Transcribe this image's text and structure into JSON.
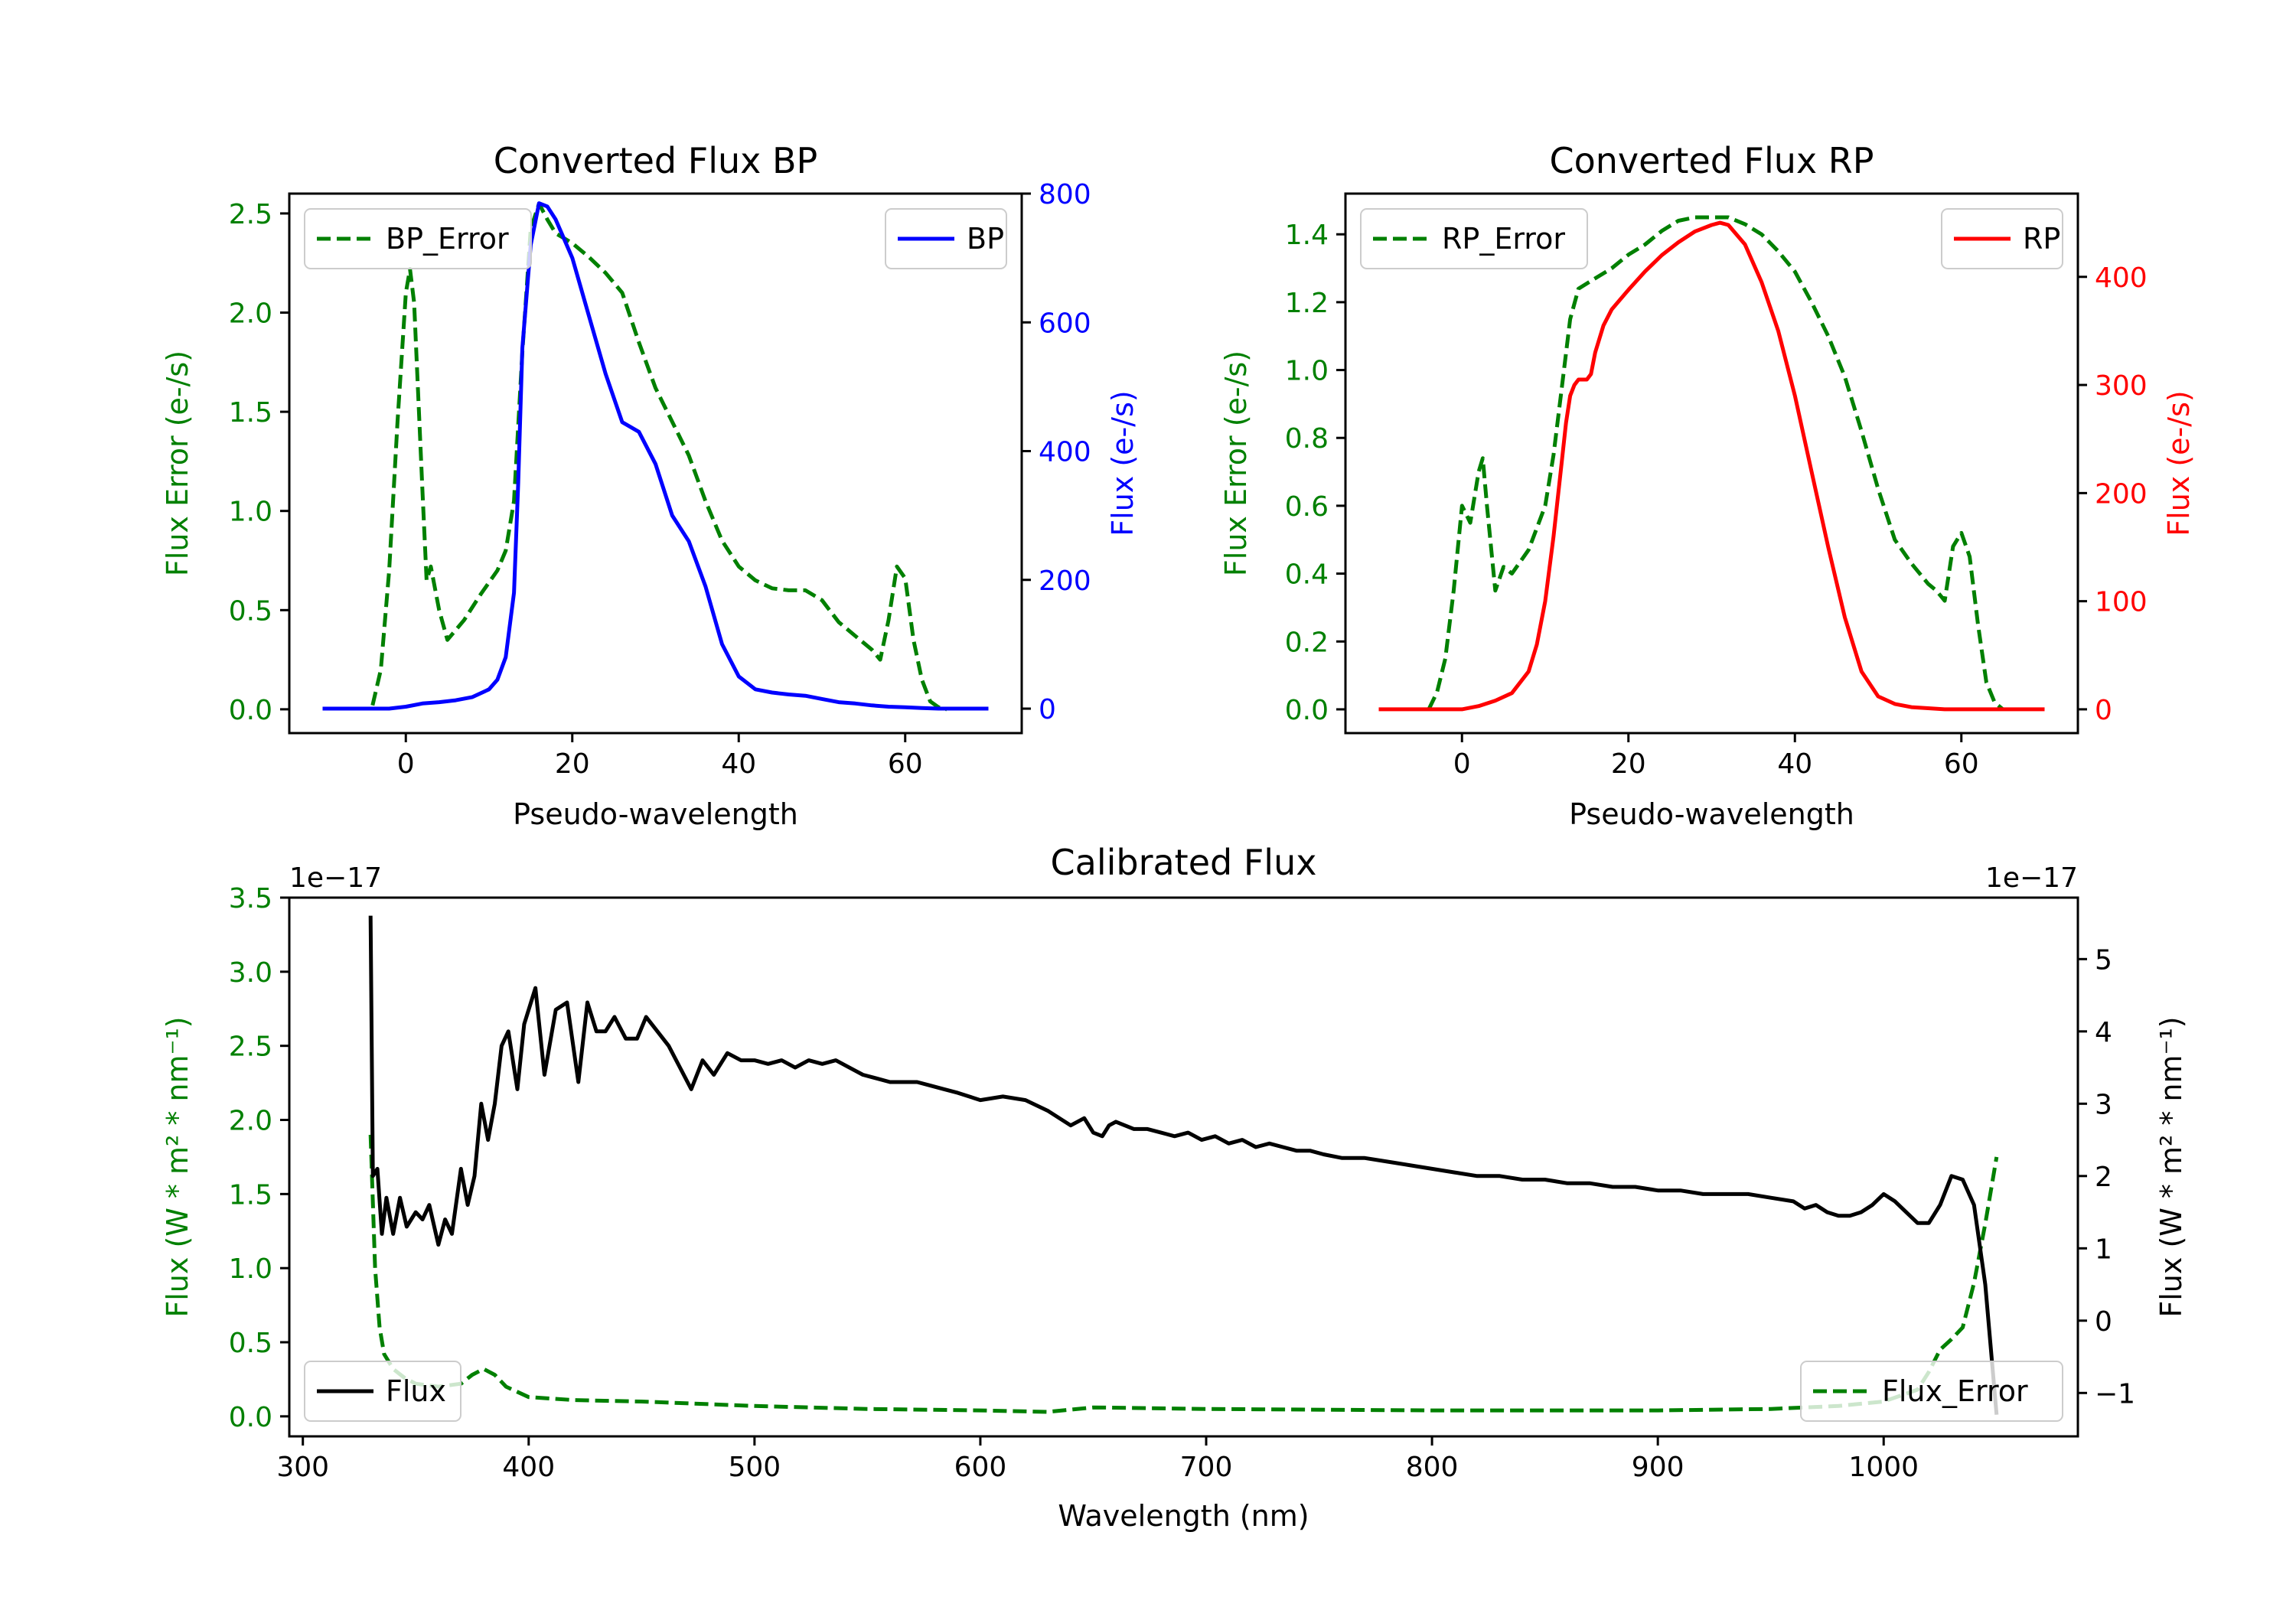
{
  "colors": {
    "error": "#008000",
    "bp": "#0000ff",
    "rp": "#ff0000",
    "flux": "#000000"
  },
  "chart_data": [
    {
      "type": "line",
      "title": "Converted Flux BP",
      "xlabel": "Pseudo-wavelength",
      "ylabel_left": "Flux Error (e-/s)",
      "ylabel_right": "Flux (e-/s)",
      "xlim": [
        -14,
        74
      ],
      "ylim_left": [
        -0.12,
        2.6
      ],
      "ylim_right": [
        -38,
        800
      ],
      "xticks": [
        0,
        20,
        40,
        60
      ],
      "xtick_labels": [
        "0",
        "20",
        "40",
        "60"
      ],
      "yticks_left": [
        0.0,
        0.5,
        1.0,
        1.5,
        2.0,
        2.5
      ],
      "ytick_labels_left": [
        "0.0",
        "0.5",
        "1.0",
        "1.5",
        "2.0",
        "2.5"
      ],
      "yticks_right": [
        0,
        200,
        400,
        600,
        800
      ],
      "ytick_labels_right": [
        "0",
        "200",
        "400",
        "600",
        "800"
      ],
      "series": [
        {
          "name": "BP_Error",
          "axis": "left",
          "style": "dashed",
          "color": "#008000",
          "x": [
            -4,
            -3,
            -2,
            -1,
            0,
            0.5,
            1,
            2,
            2.5,
            3,
            4,
            5,
            7,
            9,
            11,
            12,
            13,
            14,
            15,
            16,
            17,
            18,
            20,
            22,
            24,
            26,
            28,
            30,
            32,
            34,
            36,
            38,
            40,
            42,
            44,
            46,
            48,
            50,
            52,
            54,
            56,
            57,
            58,
            59,
            60,
            61,
            62,
            63,
            64,
            65
          ],
          "values": [
            0.02,
            0.2,
            0.7,
            1.45,
            2.1,
            2.22,
            2.05,
            1.1,
            0.65,
            0.72,
            0.5,
            0.35,
            0.45,
            0.58,
            0.7,
            0.8,
            1.05,
            1.8,
            2.42,
            2.55,
            2.47,
            2.4,
            2.35,
            2.28,
            2.2,
            2.1,
            1.85,
            1.62,
            1.45,
            1.28,
            1.05,
            0.85,
            0.72,
            0.65,
            0.61,
            0.6,
            0.6,
            0.55,
            0.44,
            0.37,
            0.3,
            0.25,
            0.45,
            0.72,
            0.66,
            0.35,
            0.15,
            0.04,
            0.01,
            0.0
          ]
        },
        {
          "name": "BP",
          "axis": "right",
          "style": "solid",
          "color": "#0000ff",
          "x": [
            -10,
            -6,
            -2,
            0,
            2,
            4,
            6,
            8,
            10,
            11,
            12,
            13,
            13.5,
            14,
            15,
            16,
            17,
            18,
            19,
            20,
            22,
            24,
            26,
            28,
            30,
            32,
            34,
            36,
            38,
            40,
            42,
            44,
            46,
            48,
            50,
            52,
            54,
            56,
            58,
            60,
            62,
            64,
            66,
            68,
            70
          ],
          "values": [
            0,
            0,
            0,
            3,
            8,
            10,
            13,
            18,
            30,
            45,
            80,
            180,
            350,
            560,
            720,
            785,
            780,
            760,
            730,
            700,
            610,
            520,
            445,
            430,
            380,
            300,
            260,
            190,
            100,
            50,
            30,
            25,
            22,
            20,
            15,
            10,
            8,
            5,
            3,
            2,
            1,
            0,
            0,
            0,
            0
          ]
        }
      ],
      "legend": [
        {
          "label": "BP_Error",
          "position": "upper-left"
        },
        {
          "label": "BP",
          "position": "upper-right"
        }
      ]
    },
    {
      "type": "line",
      "title": "Converted Flux RP",
      "xlabel": "Pseudo-wavelength",
      "ylabel_left": "Flux Error (e-/s)",
      "ylabel_right": "Flux (e-/s)",
      "xlim": [
        -14,
        74
      ],
      "ylim_left": [
        -0.07,
        1.52
      ],
      "ylim_right": [
        -22,
        477
      ],
      "xticks": [
        0,
        20,
        40,
        60
      ],
      "xtick_labels": [
        "0",
        "20",
        "40",
        "60"
      ],
      "yticks_left": [
        0.0,
        0.2,
        0.4,
        0.6,
        0.8,
        1.0,
        1.2,
        1.4
      ],
      "ytick_labels_left": [
        "0.0",
        "0.2",
        "0.4",
        "0.6",
        "0.8",
        "1.0",
        "1.2",
        "1.4"
      ],
      "yticks_right": [
        0,
        100,
        200,
        300,
        400
      ],
      "ytick_labels_right": [
        "0",
        "100",
        "200",
        "300",
        "400"
      ],
      "series": [
        {
          "name": "RP_Error",
          "axis": "left",
          "style": "dashed",
          "color": "#008000",
          "x": [
            -4,
            -3,
            -2,
            -1,
            0,
            1,
            2,
            2.5,
            3,
            4,
            5,
            6,
            8,
            10,
            11,
            12,
            13,
            14,
            16,
            18,
            20,
            22,
            24,
            26,
            28,
            30,
            32,
            34,
            36,
            38,
            40,
            42,
            44,
            46,
            48,
            50,
            52,
            54,
            55,
            56,
            57,
            58,
            59,
            60,
            61,
            62,
            63,
            64,
            65
          ],
          "values": [
            0.0,
            0.05,
            0.15,
            0.35,
            0.6,
            0.55,
            0.7,
            0.74,
            0.6,
            0.35,
            0.42,
            0.4,
            0.47,
            0.6,
            0.75,
            0.95,
            1.15,
            1.24,
            1.27,
            1.3,
            1.34,
            1.37,
            1.41,
            1.44,
            1.45,
            1.45,
            1.45,
            1.43,
            1.4,
            1.35,
            1.29,
            1.2,
            1.1,
            0.98,
            0.82,
            0.65,
            0.5,
            0.43,
            0.4,
            0.37,
            0.35,
            0.32,
            0.48,
            0.52,
            0.45,
            0.25,
            0.08,
            0.02,
            0.0
          ]
        },
        {
          "name": "RP",
          "axis": "right",
          "style": "solid",
          "color": "#ff0000",
          "x": [
            -10,
            -5,
            0,
            2,
            4,
            6,
            8,
            9,
            10,
            11,
            12,
            12.5,
            13,
            13.5,
            14,
            15,
            15.5,
            16,
            17,
            18,
            20,
            22,
            24,
            26,
            28,
            30,
            31,
            32,
            34,
            36,
            38,
            40,
            42,
            44,
            46,
            48,
            50,
            52,
            54,
            56,
            58,
            60,
            62,
            64,
            66,
            68,
            70
          ],
          "values": [
            0,
            0,
            0,
            3,
            8,
            15,
            35,
            60,
            100,
            160,
            230,
            265,
            290,
            300,
            305,
            305,
            310,
            330,
            355,
            370,
            388,
            405,
            420,
            432,
            442,
            448,
            450,
            448,
            430,
            395,
            350,
            290,
            220,
            150,
            85,
            35,
            12,
            5,
            2,
            1,
            0,
            0,
            0,
            0,
            0,
            0,
            0
          ]
        }
      ],
      "legend": [
        {
          "label": "RP_Error",
          "position": "upper-left"
        },
        {
          "label": "RP",
          "position": "upper-right"
        }
      ]
    },
    {
      "type": "line",
      "title": "Calibrated Flux",
      "xlabel": "Wavelength (nm)",
      "ylabel_left": "Flux (W * m² * nm⁻¹)",
      "ylabel_right": "Flux (W * m² * nm⁻¹)",
      "offset_left": "1e−17",
      "offset_right": "1e−17",
      "xlim": [
        294,
        1086
      ],
      "ylim_left": [
        -0.135,
        3.5
      ],
      "ylim_right": [
        -1.6,
        5.85
      ],
      "xticks": [
        300,
        400,
        500,
        600,
        700,
        800,
        900,
        1000
      ],
      "xtick_labels": [
        "300",
        "400",
        "500",
        "600",
        "700",
        "800",
        "900",
        "1000"
      ],
      "yticks_left": [
        0.0,
        0.5,
        1.0,
        1.5,
        2.0,
        2.5,
        3.0,
        3.5
      ],
      "ytick_labels_left": [
        "0.0",
        "0.5",
        "1.0",
        "1.5",
        "2.0",
        "2.5",
        "3.0",
        "3.5"
      ],
      "yticks_right": [
        -1,
        0,
        1,
        2,
        3,
        4,
        5
      ],
      "ytick_labels_right": [
        "−1",
        "0",
        "1",
        "2",
        "3",
        "4",
        "5"
      ],
      "series": [
        {
          "name": "Flux_Error",
          "axis": "left",
          "style": "dashed",
          "color": "#008000",
          "x": [
            330,
            332,
            334,
            336,
            340,
            345,
            350,
            360,
            370,
            375,
            380,
            385,
            390,
            400,
            420,
            450,
            500,
            550,
            600,
            630,
            650,
            700,
            800,
            900,
            950,
            980,
            1000,
            1015,
            1020,
            1025,
            1030,
            1035,
            1040,
            1045,
            1050
          ],
          "values": [
            1.9,
            1.0,
            0.6,
            0.42,
            0.32,
            0.26,
            0.22,
            0.2,
            0.22,
            0.28,
            0.32,
            0.28,
            0.2,
            0.13,
            0.11,
            0.1,
            0.07,
            0.05,
            0.04,
            0.03,
            0.06,
            0.05,
            0.04,
            0.04,
            0.05,
            0.07,
            0.1,
            0.18,
            0.3,
            0.45,
            0.52,
            0.6,
            0.9,
            1.3,
            1.75
          ]
        },
        {
          "name": "Flux",
          "axis": "right",
          "style": "solid",
          "color": "#000000",
          "x": [
            330,
            331,
            333,
            335,
            337,
            340,
            343,
            346,
            350,
            353,
            356,
            360,
            363,
            366,
            370,
            373,
            376,
            379,
            382,
            385,
            388,
            391,
            395,
            398,
            403,
            407,
            412,
            417,
            422,
            426,
            430,
            434,
            438,
            443,
            448,
            452,
            457,
            462,
            467,
            472,
            477,
            482,
            488,
            494,
            500,
            506,
            512,
            518,
            524,
            530,
            536,
            542,
            548,
            554,
            560,
            566,
            572,
            578,
            584,
            590,
            600,
            610,
            620,
            630,
            640,
            646,
            650,
            654,
            657,
            660,
            664,
            668,
            674,
            680,
            686,
            692,
            698,
            704,
            710,
            716,
            722,
            728,
            734,
            740,
            746,
            752,
            760,
            770,
            780,
            790,
            800,
            810,
            820,
            830,
            840,
            850,
            860,
            870,
            880,
            890,
            900,
            910,
            920,
            930,
            940,
            950,
            960,
            965,
            970,
            975,
            980,
            985,
            990,
            995,
            1000,
            1005,
            1010,
            1015,
            1020,
            1025,
            1030,
            1035,
            1040,
            1045,
            1050
          ],
          "values": [
            5.6,
            2.0,
            2.1,
            1.2,
            1.7,
            1.2,
            1.7,
            1.3,
            1.5,
            1.4,
            1.6,
            1.05,
            1.4,
            1.2,
            2.1,
            1.6,
            2.0,
            3.0,
            2.5,
            3.0,
            3.8,
            4.0,
            3.2,
            4.1,
            4.6,
            3.4,
            4.3,
            4.4,
            3.3,
            4.4,
            4.0,
            4.0,
            4.2,
            3.9,
            3.9,
            4.2,
            4.0,
            3.8,
            3.5,
            3.2,
            3.6,
            3.4,
            3.7,
            3.6,
            3.6,
            3.55,
            3.6,
            3.5,
            3.6,
            3.55,
            3.6,
            3.5,
            3.4,
            3.35,
            3.3,
            3.3,
            3.3,
            3.25,
            3.2,
            3.15,
            3.05,
            3.1,
            3.05,
            2.9,
            2.7,
            2.8,
            2.6,
            2.55,
            2.7,
            2.75,
            2.7,
            2.65,
            2.65,
            2.6,
            2.55,
            2.6,
            2.5,
            2.55,
            2.45,
            2.5,
            2.4,
            2.45,
            2.4,
            2.35,
            2.35,
            2.3,
            2.25,
            2.25,
            2.2,
            2.15,
            2.1,
            2.05,
            2.0,
            2.0,
            1.95,
            1.95,
            1.9,
            1.9,
            1.85,
            1.85,
            1.8,
            1.8,
            1.75,
            1.75,
            1.75,
            1.7,
            1.65,
            1.55,
            1.6,
            1.5,
            1.45,
            1.45,
            1.5,
            1.6,
            1.75,
            1.65,
            1.5,
            1.35,
            1.35,
            1.6,
            2.0,
            1.95,
            1.6,
            0.5,
            -1.3
          ]
        }
      ],
      "legend": [
        {
          "label": "Flux",
          "position": "lower-left"
        },
        {
          "label": "Flux_Error",
          "position": "lower-right"
        }
      ]
    }
  ]
}
